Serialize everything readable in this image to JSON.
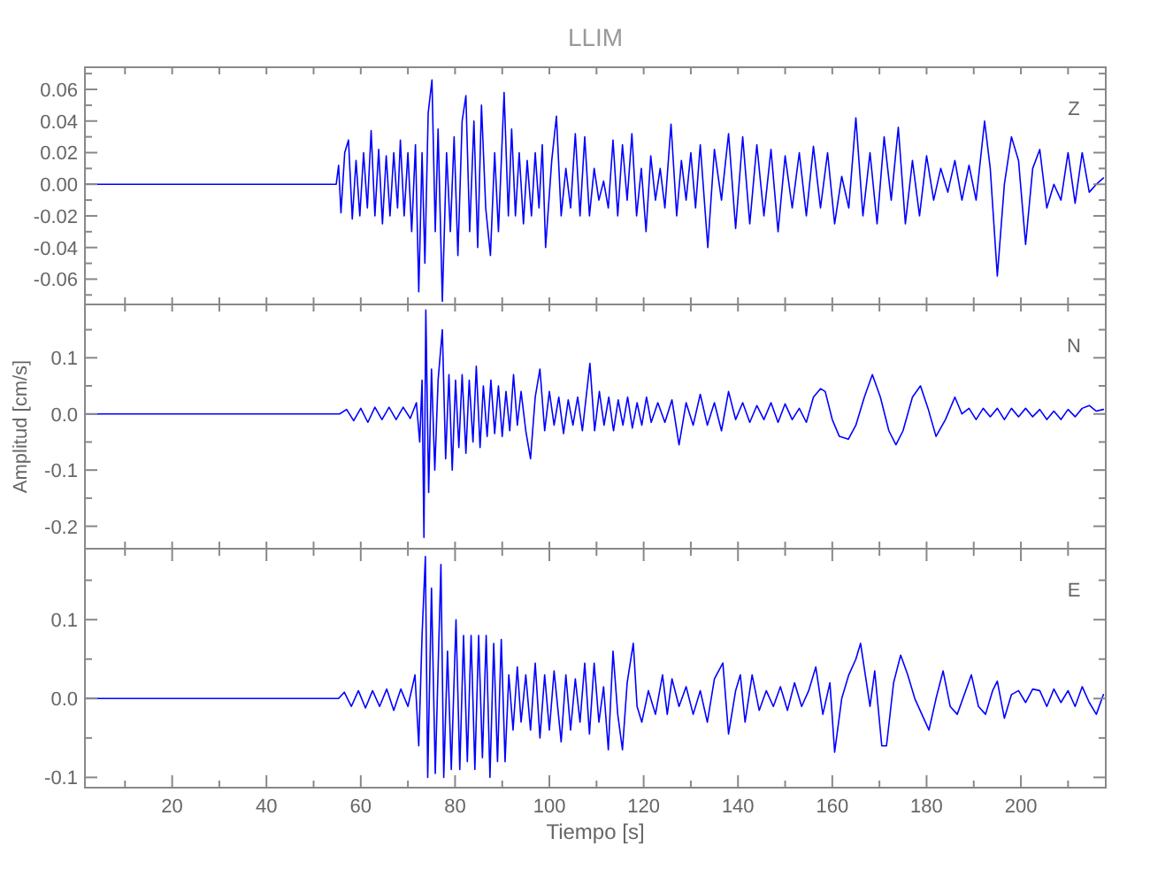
{
  "chart_data": [
    {
      "type": "line",
      "title": "LLIM",
      "annotations": [
        "Z"
      ],
      "color": "#0000ff",
      "xlim": [
        1.5,
        218
      ],
      "ylim": [
        -0.076,
        0.074
      ],
      "tick_labels": "y",
      "xticks": [
        {
          "value": 10,
          "label": null
        },
        {
          "value": 20,
          "label": null
        },
        {
          "value": 30,
          "label": null
        },
        {
          "value": 40,
          "label": null
        },
        {
          "value": 50,
          "label": null
        },
        {
          "value": 60,
          "label": null
        },
        {
          "value": 70,
          "label": null
        },
        {
          "value": 80,
          "label": null
        },
        {
          "value": 90,
          "label": null
        },
        {
          "value": 100,
          "label": null
        },
        {
          "value": 110,
          "label": null
        },
        {
          "value": 120,
          "label": null
        },
        {
          "value": 130,
          "label": null
        },
        {
          "value": 140,
          "label": null
        },
        {
          "value": 150,
          "label": null
        },
        {
          "value": 160,
          "label": null
        },
        {
          "value": 170,
          "label": null
        },
        {
          "value": 180,
          "label": null
        },
        {
          "value": 190,
          "label": null
        },
        {
          "value": 200,
          "label": null
        },
        {
          "value": 210,
          "label": null
        }
      ],
      "yticks": [
        {
          "value": -0.07,
          "label": null
        },
        -0.06,
        {
          "value": -0.05,
          "label": null
        },
        -0.04,
        {
          "value": -0.03,
          "label": null
        },
        -0.02,
        {
          "value": -0.01,
          "label": null
        },
        {
          "value": 0,
          "label": "0.00"
        },
        {
          "value": 0.01,
          "label": null
        },
        0.02,
        {
          "value": 0.03,
          "label": null
        },
        0.04,
        {
          "value": 0.05,
          "label": null
        },
        0.06,
        {
          "value": 0.07,
          "label": null
        }
      ],
      "x": [
        1.5,
        10,
        20,
        30,
        40,
        50,
        54.8,
        55.3,
        55.8,
        56.6,
        57.4,
        58.2,
        59,
        59.8,
        60.6,
        61.4,
        62.2,
        63,
        63.8,
        64.6,
        65.4,
        66.2,
        67,
        67.8,
        68.4,
        69.2,
        70,
        70.8,
        71.6,
        72.3,
        73,
        73.6,
        74.3,
        75.1,
        75.8,
        76.4,
        77.3,
        78.2,
        79,
        79.8,
        80.6,
        81.5,
        82.3,
        83.1,
        84,
        84.8,
        85.6,
        86.5,
        87.5,
        88.4,
        89.2,
        90.4,
        91.3,
        92,
        92.8,
        93.6,
        94.5,
        95.3,
        96.2,
        97,
        97.8,
        98.5,
        99.2,
        100.5,
        101.5,
        102.5,
        103.5,
        104.5,
        105.5,
        106.5,
        107.5,
        108.5,
        109.5,
        110.5,
        111.5,
        112.5,
        113.5,
        114.5,
        115.5,
        116.5,
        117.5,
        118.5,
        119.5,
        120.5,
        121.5,
        122.5,
        123.5,
        124.5,
        125.8,
        127,
        128,
        129,
        130,
        131,
        132,
        133.6,
        135,
        136.5,
        138,
        139.5,
        141,
        142.5,
        144,
        145.5,
        147,
        148.5,
        150,
        151.5,
        153,
        154.5,
        156,
        157.5,
        159,
        160.5,
        162,
        163.5,
        165,
        166.5,
        168,
        169.5,
        171,
        172.5,
        174,
        175.5,
        177,
        178.5,
        180,
        181.5,
        183,
        184.5,
        186,
        187.5,
        189,
        190.5,
        192.3,
        193.5,
        195,
        196.5,
        198,
        199.5,
        201,
        202.5,
        204,
        205.5,
        207,
        208.5,
        210,
        211.5,
        213,
        214.5,
        216,
        217.5
      ],
      "values": [
        0,
        0,
        0,
        0,
        0,
        0,
        0,
        0.012,
        -0.018,
        0.02,
        0.028,
        -0.022,
        0.015,
        -0.02,
        0.02,
        -0.015,
        0.034,
        -0.02,
        0.022,
        -0.025,
        0.018,
        -0.02,
        0.02,
        -0.015,
        0.028,
        -0.02,
        0.02,
        -0.03,
        0.025,
        -0.068,
        0.02,
        -0.05,
        0.045,
        0.066,
        -0.03,
        0.035,
        -0.074,
        0.02,
        -0.03,
        0.03,
        -0.045,
        0.04,
        0.056,
        -0.03,
        0.04,
        -0.04,
        0.05,
        -0.015,
        -0.045,
        0.02,
        -0.03,
        0.058,
        -0.02,
        0.035,
        -0.02,
        0.02,
        -0.025,
        0.015,
        -0.02,
        0.02,
        -0.015,
        0.025,
        -0.04,
        0.015,
        0.043,
        -0.02,
        0.01,
        -0.015,
        0.032,
        -0.02,
        0.03,
        -0.02,
        0.01,
        -0.01,
        0.002,
        -0.015,
        0.028,
        -0.02,
        0.025,
        -0.01,
        0.032,
        -0.02,
        0.01,
        -0.03,
        0.018,
        -0.01,
        0.01,
        -0.015,
        0.038,
        -0.02,
        0.015,
        -0.01,
        0.02,
        -0.015,
        0.025,
        -0.04,
        0.022,
        -0.01,
        0.032,
        -0.028,
        0.03,
        -0.025,
        0.025,
        -0.02,
        0.022,
        -0.03,
        0.018,
        -0.015,
        0.02,
        -0.02,
        0.024,
        -0.015,
        0.02,
        -0.025,
        0.005,
        -0.015,
        0.042,
        -0.02,
        0.02,
        -0.025,
        0.03,
        -0.01,
        0.036,
        -0.025,
        0.015,
        -0.02,
        0.018,
        -0.01,
        0.01,
        -0.005,
        0.015,
        -0.01,
        0.012,
        -0.01,
        0.04,
        0.01,
        -0.058,
        0,
        0.03,
        0.015,
        -0.038,
        0.01,
        0.022,
        -0.015,
        0,
        -0.01,
        0.02,
        -0.012,
        0.02,
        -0.005,
        0,
        0.004
      ]
    },
    {
      "type": "line",
      "ylabel": "Amplitud [cm/s]",
      "annotations": [
        "N"
      ],
      "color": "#0000ff",
      "xlim": [
        1.5,
        218
      ],
      "ylim": [
        -0.24,
        0.195
      ],
      "tick_labels": "y",
      "xticks": [
        {
          "value": 10,
          "label": null
        },
        {
          "value": 20,
          "label": null
        },
        {
          "value": 30,
          "label": null
        },
        {
          "value": 40,
          "label": null
        },
        {
          "value": 50,
          "label": null
        },
        {
          "value": 60,
          "label": null
        },
        {
          "value": 70,
          "label": null
        },
        {
          "value": 80,
          "label": null
        },
        {
          "value": 90,
          "label": null
        },
        {
          "value": 100,
          "label": null
        },
        {
          "value": 110,
          "label": null
        },
        {
          "value": 120,
          "label": null
        },
        {
          "value": 130,
          "label": null
        },
        {
          "value": 140,
          "label": null
        },
        {
          "value": 150,
          "label": null
        },
        {
          "value": 160,
          "label": null
        },
        {
          "value": 170,
          "label": null
        },
        {
          "value": 180,
          "label": null
        },
        {
          "value": 190,
          "label": null
        },
        {
          "value": 200,
          "label": null
        },
        {
          "value": 210,
          "label": null
        }
      ],
      "yticks": [
        -0.2,
        {
          "value": -0.15,
          "label": null
        },
        -0.1,
        {
          "value": -0.05,
          "label": null
        },
        {
          "value": 0,
          "label": "0.0"
        },
        {
          "value": 0.05,
          "label": null
        },
        0.1,
        {
          "value": 0.15,
          "label": null
        }
      ],
      "x": [
        1.5,
        10,
        20,
        30,
        40,
        50,
        55.5,
        57,
        58.5,
        60,
        61.5,
        63,
        64.5,
        66,
        67.5,
        69,
        70.5,
        71.8,
        72.5,
        73,
        73.4,
        73.8,
        74.4,
        75,
        75.7,
        76.4,
        77.3,
        78,
        78.7,
        79.4,
        80.1,
        80.8,
        81.5,
        82.3,
        83,
        83.8,
        84.5,
        85.3,
        86,
        86.8,
        87.6,
        88.4,
        89.2,
        90,
        90.8,
        91.6,
        92.4,
        93.2,
        94,
        95,
        96,
        97,
        98,
        99,
        100,
        101,
        102,
        103,
        104,
        105,
        106,
        107,
        108.6,
        109.6,
        110.6,
        111.6,
        112.6,
        113.6,
        114.6,
        115.6,
        116.6,
        117.6,
        118.6,
        119.6,
        120.6,
        121.6,
        123,
        124.5,
        126,
        127.5,
        129,
        130.5,
        132,
        133.5,
        135,
        136.5,
        138,
        139.5,
        141,
        142.5,
        144,
        145.5,
        147,
        148.5,
        150,
        151.5,
        153,
        154.5,
        156,
        157.5,
        158.5,
        160,
        161.5,
        163.4,
        165,
        166.8,
        168.5,
        170.2,
        172,
        173.5,
        175,
        177,
        178.7,
        180.3,
        182,
        184,
        186,
        187.5,
        189,
        190.5,
        192,
        193.5,
        195,
        196.5,
        198,
        199.5,
        201,
        202.5,
        204,
        205.5,
        207,
        208.5,
        210,
        211.5,
        213,
        214.5,
        216,
        217.5
      ],
      "values": [
        0,
        0,
        0,
        0,
        0,
        0,
        0,
        0.008,
        -0.012,
        0.01,
        -0.015,
        0.012,
        -0.01,
        0.012,
        -0.01,
        0.012,
        -0.008,
        0.02,
        -0.05,
        0.06,
        -0.22,
        0.185,
        -0.14,
        0.08,
        -0.1,
        0.06,
        0.15,
        -0.08,
        0.07,
        -0.1,
        0.06,
        -0.06,
        0.07,
        -0.07,
        0.06,
        -0.05,
        0.085,
        -0.06,
        0.05,
        -0.04,
        0.06,
        -0.035,
        0.05,
        -0.04,
        0.04,
        -0.03,
        0.07,
        -0.02,
        0.04,
        -0.03,
        -0.08,
        0.03,
        0.08,
        -0.03,
        0.04,
        -0.02,
        0.03,
        -0.035,
        0.025,
        -0.02,
        0.03,
        -0.03,
        0.09,
        -0.03,
        0.04,
        -0.02,
        0.03,
        -0.03,
        0.025,
        -0.02,
        0.03,
        -0.025,
        0.02,
        -0.02,
        0.03,
        -0.015,
        0.02,
        -0.015,
        0.025,
        -0.055,
        0.02,
        -0.02,
        0.035,
        -0.02,
        0.02,
        -0.03,
        0.04,
        -0.01,
        0.02,
        -0.015,
        0.015,
        -0.01,
        0.02,
        -0.015,
        0.018,
        -0.01,
        0.01,
        -0.015,
        0.03,
        0.045,
        0.04,
        -0.01,
        -0.04,
        -0.045,
        -0.02,
        0.03,
        0.07,
        0.03,
        -0.03,
        -0.055,
        -0.03,
        0.03,
        0.05,
        0.01,
        -0.04,
        -0.01,
        0.03,
        0,
        0.01,
        -0.01,
        0.01,
        -0.005,
        0.01,
        -0.01,
        0.01,
        -0.005,
        0.01,
        -0.005,
        0.008,
        -0.01,
        0.005,
        -0.01,
        0.008,
        -0.005,
        0.01,
        0.015,
        0.005,
        0.008
      ]
    },
    {
      "type": "line",
      "xlabel": "Tiempo [s]",
      "annotations": [
        "E"
      ],
      "color": "#0000ff",
      "xlim": [
        1.5,
        218
      ],
      "ylim": [
        -0.113,
        0.19
      ],
      "xticks": [
        {
          "value": 10,
          "label": null
        },
        20,
        {
          "value": 30,
          "label": null
        },
        40,
        {
          "value": 50,
          "label": null
        },
        60,
        {
          "value": 70,
          "label": null
        },
        80,
        {
          "value": 90,
          "label": null
        },
        100,
        {
          "value": 110,
          "label": null
        },
        120,
        {
          "value": 130,
          "label": null
        },
        140,
        {
          "value": 150,
          "label": null
        },
        160,
        {
          "value": 170,
          "label": null
        },
        180,
        {
          "value": 190,
          "label": null
        },
        200,
        {
          "value": 210,
          "label": null
        }
      ],
      "yticks": [
        -0.1,
        {
          "value": -0.05,
          "label": null
        },
        {
          "value": 0,
          "label": "0.0"
        },
        {
          "value": 0.05,
          "label": null
        },
        0.1,
        {
          "value": 0.15,
          "label": null
        }
      ],
      "x": [
        1.5,
        10,
        20,
        30,
        40,
        50,
        55.3,
        56.5,
        58,
        59.5,
        61,
        62.5,
        64,
        65.5,
        67,
        68.5,
        70,
        71.5,
        72.3,
        73,
        73.7,
        74.2,
        75,
        75.8,
        77,
        77.6,
        78.4,
        79.2,
        80.2,
        81,
        81.8,
        82.6,
        83.4,
        84.2,
        85,
        85.8,
        86.6,
        87.4,
        88.2,
        89,
        89.8,
        90.6,
        91.4,
        92.3,
        93.2,
        94,
        95,
        96,
        97,
        98,
        99,
        100,
        101,
        102.5,
        103.5,
        104.5,
        105.5,
        106.5,
        107.5,
        108.5,
        109.5,
        110.5,
        111.5,
        112.5,
        113.5,
        114.5,
        115.5,
        116.5,
        117.8,
        118.6,
        119.6,
        121,
        122.5,
        124,
        125,
        126,
        127.5,
        129,
        130.5,
        132,
        133.5,
        135,
        136.8,
        138,
        139.5,
        140.5,
        141.5,
        143,
        144.5,
        146,
        147.5,
        149,
        150.5,
        152,
        153.5,
        155,
        156.5,
        158,
        159.5,
        160.5,
        162,
        163.5,
        165,
        166,
        167,
        168,
        169,
        170.5,
        171.5,
        173,
        174.5,
        176,
        177.5,
        179,
        180.5,
        182,
        183.5,
        185,
        186.5,
        188,
        189.5,
        191,
        192.5,
        194,
        195,
        196.5,
        198,
        199.5,
        201,
        202.5,
        204,
        205.5,
        207,
        208.5,
        210,
        211.5,
        213,
        214.5,
        216,
        217.5
      ],
      "values": [
        0,
        0,
        0,
        0,
        0,
        0,
        0,
        0.008,
        -0.01,
        0.01,
        -0.012,
        0.01,
        -0.01,
        0.012,
        -0.015,
        0.012,
        -0.01,
        0.03,
        -0.06,
        0.08,
        0.18,
        -0.1,
        0.14,
        -0.095,
        0.17,
        -0.1,
        0.06,
        -0.09,
        0.1,
        -0.09,
        0.08,
        -0.08,
        0.08,
        -0.09,
        0.08,
        -0.075,
        0.08,
        -0.1,
        0.07,
        -0.08,
        0.075,
        -0.08,
        0.03,
        -0.04,
        0.04,
        -0.03,
        0.03,
        -0.04,
        0.045,
        -0.05,
        0.03,
        -0.04,
        0.035,
        -0.055,
        0.03,
        -0.04,
        0.025,
        -0.03,
        0.045,
        -0.045,
        0.045,
        -0.03,
        0.015,
        -0.065,
        0.06,
        -0.02,
        -0.065,
        0.02,
        0.07,
        -0.01,
        -0.03,
        0.01,
        -0.02,
        0.03,
        -0.02,
        0.025,
        -0.01,
        0.015,
        -0.02,
        0.01,
        -0.03,
        0.025,
        0.045,
        -0.045,
        0.01,
        0.03,
        -0.03,
        0.03,
        -0.015,
        0.01,
        -0.01,
        0.015,
        -0.015,
        0.02,
        -0.01,
        0.01,
        0.04,
        -0.02,
        0.02,
        -0.068,
        0,
        0.03,
        0.05,
        0.07,
        0.03,
        -0.01,
        0.035,
        -0.06,
        -0.06,
        0.02,
        0.055,
        0.03,
        0,
        -0.02,
        -0.04,
        0,
        0.035,
        -0.01,
        -0.02,
        0.005,
        0.03,
        -0.01,
        -0.02,
        0.01,
        0.022,
        -0.025,
        0.005,
        0.01,
        -0.005,
        0.012,
        0.01,
        -0.01,
        0.012,
        -0.005,
        0.01,
        -0.01,
        0.015,
        -0.005,
        -0.02,
        0.005
      ]
    }
  ]
}
